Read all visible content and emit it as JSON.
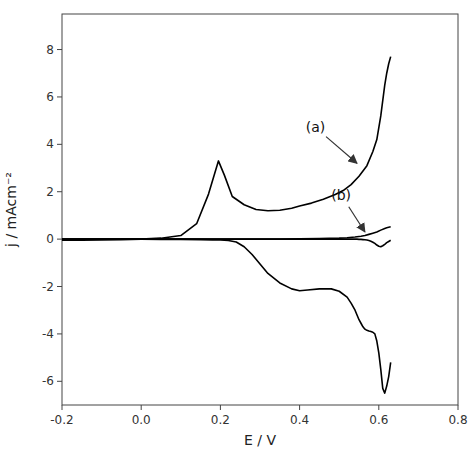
{
  "chart_data": {
    "type": "line",
    "xlabel": "E / V",
    "ylabel": "j / mAcm⁻²",
    "xlim": [
      -0.2,
      0.8
    ],
    "ylim": [
      -7,
      9.5
    ],
    "xticks": [
      -0.2,
      {
        "value": 0.0,
        "label": "0.0"
      },
      0.2,
      0.4,
      0.6,
      0.8
    ],
    "yticks": [
      -6,
      -4,
      -2,
      0,
      2,
      4,
      6,
      8
    ],
    "series": [
      {
        "color": "#000000",
        "x": [
          -0.2,
          -0.15,
          -0.1,
          -0.05,
          0.0,
          0.05,
          0.1,
          0.14,
          0.17,
          0.195,
          0.21,
          0.23,
          0.26,
          0.29,
          0.32,
          0.35,
          0.38,
          0.4,
          0.43,
          0.46,
          0.49,
          0.51,
          0.53,
          0.55,
          0.57,
          0.585,
          0.595,
          0.605,
          0.615,
          0.62,
          0.625,
          0.63
        ],
        "values": [
          -0.05,
          -0.05,
          -0.04,
          -0.02,
          0.0,
          0.04,
          0.15,
          0.65,
          1.9,
          3.3,
          2.7,
          1.8,
          1.45,
          1.25,
          1.2,
          1.22,
          1.3,
          1.4,
          1.52,
          1.68,
          1.88,
          2.05,
          2.3,
          2.65,
          3.1,
          3.7,
          4.2,
          5.2,
          6.5,
          7.0,
          7.4,
          7.7
        ]
      },
      {
        "color": "#000000",
        "x": [
          0.63,
          0.625,
          0.62,
          0.615,
          0.61,
          0.605,
          0.6,
          0.595,
          0.59,
          0.585,
          0.58,
          0.575,
          0.57,
          0.565,
          0.56,
          0.555,
          0.55,
          0.545,
          0.54,
          0.53,
          0.52,
          0.5,
          0.48,
          0.45,
          0.42,
          0.4,
          0.38,
          0.35,
          0.32,
          0.3,
          0.28,
          0.26,
          0.24,
          0.22,
          0.2,
          0.18,
          0.15,
          0.1,
          0.05,
          0.0,
          -0.05,
          -0.1,
          -0.15,
          -0.2
        ],
        "values": [
          -5.2,
          -5.8,
          -6.2,
          -6.5,
          -6.3,
          -5.5,
          -4.8,
          -4.3,
          -4.0,
          -3.93,
          -3.9,
          -3.88,
          -3.85,
          -3.8,
          -3.7,
          -3.55,
          -3.4,
          -3.2,
          -3.0,
          -2.7,
          -2.45,
          -2.2,
          -2.1,
          -2.1,
          -2.15,
          -2.18,
          -2.1,
          -1.85,
          -1.45,
          -1.05,
          -0.65,
          -0.32,
          -0.12,
          -0.06,
          -0.04,
          -0.03,
          -0.02,
          -0.01,
          -0.01,
          0.0,
          0.0,
          0.0,
          0.0,
          0.0
        ]
      },
      {
        "color": "#000000",
        "x": [
          -0.2,
          -0.15,
          -0.1,
          -0.05,
          0.0,
          0.05,
          0.1,
          0.15,
          0.2,
          0.25,
          0.3,
          0.35,
          0.4,
          0.45,
          0.5,
          0.52,
          0.54,
          0.555,
          0.565,
          0.575,
          0.585,
          0.595,
          0.605,
          0.615,
          0.62,
          0.625,
          0.63
        ],
        "values": [
          0.0,
          0.0,
          0.0,
          0.0,
          0.0,
          0.0,
          0.0,
          0.0,
          0.0,
          0.0,
          0.0,
          0.0,
          0.01,
          0.02,
          0.04,
          0.06,
          0.09,
          0.12,
          0.15,
          0.2,
          0.25,
          0.3,
          0.38,
          0.45,
          0.48,
          0.5,
          0.52
        ]
      },
      {
        "color": "#000000",
        "x": [
          0.63,
          0.625,
          0.62,
          0.615,
          0.61,
          0.605,
          0.6,
          0.595,
          0.59,
          0.585,
          0.58,
          0.575,
          0.57,
          0.565,
          0.56,
          0.555,
          0.55,
          0.545,
          0.54,
          0.53,
          0.52,
          0.5,
          0.48,
          0.45,
          0.4,
          0.35,
          0.3,
          0.25,
          0.2,
          0.15,
          0.1,
          0.05,
          0.0,
          -0.05,
          -0.1,
          -0.15,
          -0.2
        ],
        "values": [
          -0.05,
          -0.1,
          -0.15,
          -0.22,
          -0.28,
          -0.32,
          -0.3,
          -0.25,
          -0.18,
          -0.13,
          -0.09,
          -0.06,
          -0.04,
          -0.03,
          -0.02,
          -0.01,
          -0.01,
          0.0,
          0.0,
          0.0,
          0.0,
          0.0,
          0.0,
          0.0,
          0.0,
          0.0,
          0.0,
          0.0,
          0.0,
          0.0,
          0.0,
          0.0,
          0.0,
          0.0,
          0.0,
          0.0,
          0.0
        ]
      }
    ],
    "annotations": [
      {
        "text": "(a)",
        "x": 0.44,
        "y": 4.5,
        "arrow_x": 0.545,
        "arrow_y": 3.2
      },
      {
        "text": "(b)",
        "x": 0.505,
        "y": 1.65,
        "arrow_x": 0.565,
        "arrow_y": 0.3
      }
    ]
  }
}
